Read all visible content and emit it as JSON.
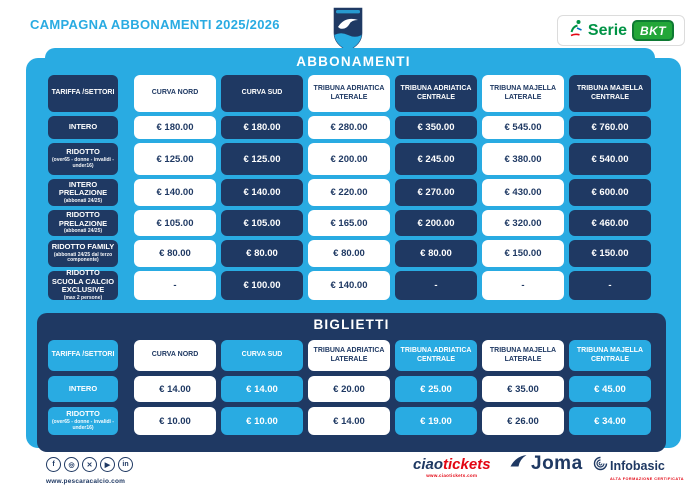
{
  "header": {
    "title": "CAMPAGNA ABBONAMENTI 2025/2026",
    "serie_label": "Serie",
    "bkt_label": "BKT"
  },
  "abbonamenti": {
    "title": "ABBONAMENTI",
    "columns": [
      "TARIFFA /SETTORI",
      "CURVA NORD",
      "CURVA SUD",
      "TRIBUNA ADRIATICA LATERALE",
      "TRIBUNA ADRIATICA CENTRALE",
      "TRIBUNA MAJELLA LATERALE",
      "TRIBUNA MAJELLA CENTRALE"
    ],
    "rows": [
      {
        "label": "INTERO",
        "sublabel": "",
        "values": [
          "€ 180.00",
          "€ 180.00",
          "€ 280.00",
          "€ 350.00",
          "€ 545.00",
          "€ 760.00"
        ]
      },
      {
        "label": "RIDOTTO",
        "sublabel": "(over65 - donne - invalidi - under16)",
        "values": [
          "€ 125.00",
          "€ 125.00",
          "€ 200.00",
          "€ 245.00",
          "€ 380.00",
          "€ 540.00"
        ]
      },
      {
        "label": "INTERO PRELAZIONE",
        "sublabel": "(abbonati 24/25)",
        "values": [
          "€ 140.00",
          "€ 140.00",
          "€ 220.00",
          "€ 270.00",
          "€ 430.00",
          "€ 600.00"
        ]
      },
      {
        "label": "RIDOTTO PRELAZIONE",
        "sublabel": "(abbonati 24/25)",
        "values": [
          "€ 105.00",
          "€ 105.00",
          "€ 165.00",
          "€ 200.00",
          "€ 320.00",
          "€ 460.00"
        ]
      },
      {
        "label": "RIDOTTO FAMILY",
        "sublabel": "(abbonati 24/25 dal terzo componente)",
        "values": [
          "€ 80.00",
          "€ 80.00",
          "€ 80.00",
          "€ 80.00",
          "€ 150.00",
          "€ 150.00"
        ]
      },
      {
        "label": "RIDOTTO SCUOLA CALCIO EXCLUSIVE",
        "sublabel": "(max 2 persone)",
        "values": [
          "-",
          "€ 100.00",
          "€ 140.00",
          "-",
          "-",
          "-"
        ]
      }
    ]
  },
  "biglietti": {
    "title": "BIGLIETTI",
    "columns": [
      "TARIFFA /SETTORI",
      "CURVA NORD",
      "CURVA SUD",
      "TRIBUNA ADRIATICA LATERALE",
      "TRIBUNA ADRIATICA CENTRALE",
      "TRIBUNA MAJELLA LATERALE",
      "TRIBUNA MAJELLA CENTRALE"
    ],
    "rows": [
      {
        "label": "INTERO",
        "sublabel": "",
        "values": [
          "€ 14.00",
          "€ 14.00",
          "€ 20.00",
          "€ 25.00",
          "€ 35.00",
          "€ 45.00"
        ]
      },
      {
        "label": "RIDOTTO",
        "sublabel": "(over65 - donne - invalidi - under16)",
        "values": [
          "€ 10.00",
          "€ 10.00",
          "€ 14.00",
          "€ 19.00",
          "€ 26.00",
          "€ 34.00"
        ]
      }
    ]
  },
  "footer": {
    "website": "www.pescaracalcio.com",
    "social_icons": [
      "facebook",
      "instagram",
      "x-twitter",
      "youtube",
      "linkedin"
    ],
    "sponsors": {
      "ciaotickets_ciao": "ciao",
      "ciaotickets_tickets": "tickets",
      "ciaotickets_url": "www.ciaotickets.com",
      "joma": "Joma",
      "infobasic": "Infobasic",
      "infobasic_tagline": "ALTA FORMAZIONE CERTIFICATA"
    }
  },
  "colors": {
    "cyan": "#29ABE2",
    "navy": "#1F3963",
    "green": "#009345",
    "red": "#E30613",
    "white": "#FFFFFF"
  }
}
